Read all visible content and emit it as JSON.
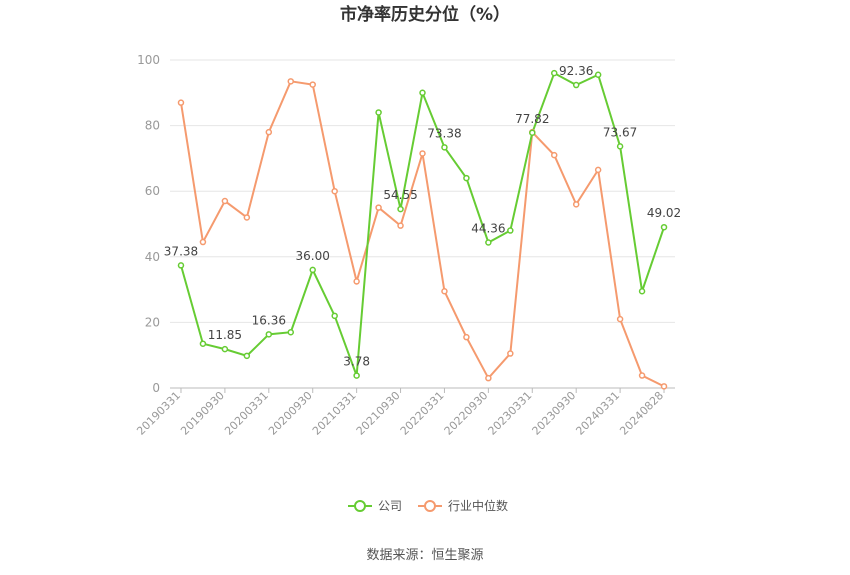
{
  "chart_data": {
    "type": "line",
    "title": "市净率历史分位（%）",
    "xlabel": "",
    "ylabel": "",
    "ylim": [
      0,
      100
    ],
    "yticks": [
      0,
      20,
      40,
      60,
      80,
      100
    ],
    "x_tick_labels": [
      "20190331",
      "20190930",
      "20200331",
      "20200930",
      "20210331",
      "20210930",
      "20220331",
      "20220930",
      "20230331",
      "20230930",
      "20240331",
      "20240828"
    ],
    "grid": true,
    "legend_position": "bottom",
    "series": [
      {
        "name": "公司",
        "color": "#66cc33",
        "values": [
          37.38,
          13.5,
          11.85,
          9.8,
          16.36,
          17.0,
          36.0,
          22.0,
          3.78,
          84.0,
          54.55,
          90.0,
          73.38,
          64.0,
          44.36,
          48.0,
          77.82,
          96.0,
          92.36,
          95.5,
          73.67,
          29.5,
          49.02
        ],
        "data_labels": [
          {
            "index": 0,
            "text": "37.38"
          },
          {
            "index": 2,
            "text": "11.85"
          },
          {
            "index": 4,
            "text": "16.36"
          },
          {
            "index": 6,
            "text": "36.00"
          },
          {
            "index": 8,
            "text": "3.78"
          },
          {
            "index": 10,
            "text": "54.55"
          },
          {
            "index": 12,
            "text": "73.38"
          },
          {
            "index": 14,
            "text": "44.36"
          },
          {
            "index": 16,
            "text": "77.82"
          },
          {
            "index": 18,
            "text": "92.36"
          },
          {
            "index": 20,
            "text": "73.67"
          },
          {
            "index": 22,
            "text": "49.02"
          }
        ]
      },
      {
        "name": "行业中位数",
        "color": "#f59a6e",
        "values": [
          87.0,
          44.5,
          57.0,
          52.0,
          78.0,
          93.5,
          92.5,
          60.0,
          32.5,
          55.0,
          49.5,
          71.5,
          29.5,
          15.5,
          3.0,
          10.5,
          78.0,
          71.0,
          56.0,
          66.5,
          21.0,
          3.8,
          0.5
        ]
      }
    ]
  },
  "source_text": "数据来源：恒生聚源"
}
